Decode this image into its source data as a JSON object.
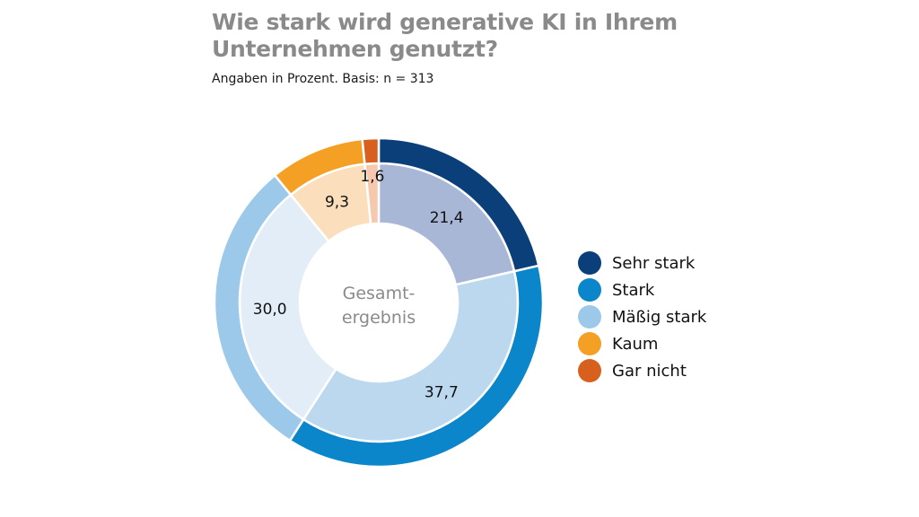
{
  "chart_data": {
    "type": "pie",
    "title": "Wie stark wird generative KI in Ihrem Unternehmen genutzt?",
    "subtitle": "Angaben in Prozent. Basis: n = 313",
    "center_label": [
      "Gesamt-",
      "ergebnis"
    ],
    "categories": [
      "Sehr stark",
      "Stark",
      "Mäßig stark",
      "Kaum",
      "Gar nicht"
    ],
    "values": [
      21.4,
      37.7,
      30.0,
      9.3,
      1.6
    ],
    "value_labels": [
      "21,4",
      "37,7",
      "30,0",
      "9,3",
      "1,6"
    ],
    "legend_position": "right",
    "colors": {
      "outer": [
        "#0b3f79",
        "#0b86cb",
        "#9cc9ea",
        "#f3a024",
        "#d7601f"
      ],
      "inner": [
        "#a9b7d6",
        "#bcd8ef",
        "#e3edf8",
        "#fbdfbd",
        "#f6c8ae"
      ]
    }
  }
}
